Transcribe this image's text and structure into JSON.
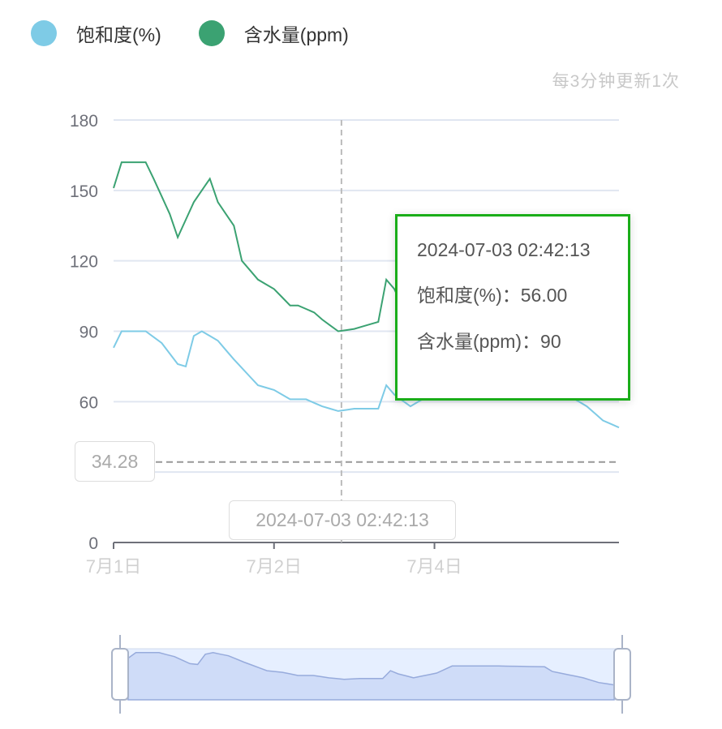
{
  "legend": [
    {
      "label": "饱和度(%)",
      "color": "#7ecbe6"
    },
    {
      "label": "含水量(ppm)",
      "color": "#3ba272"
    }
  ],
  "update_note": "每3分钟更新1次",
  "tooltip": {
    "time": "2024-07-03 02:42:13",
    "rows": [
      "饱和度(%)：56.00",
      "含水量(ppm)：90"
    ],
    "border_color": "#1aad19"
  },
  "axis_pointer_label": "2024-07-03 02:42:13",
  "mark_line": {
    "value": 34.28,
    "label": "34.28"
  },
  "chart_data": {
    "type": "line",
    "x_axis": "category",
    "x_count": 64,
    "x_ticks": [
      {
        "index": 0,
        "label": "7月1日"
      },
      {
        "index": 20,
        "label": "7月2日"
      },
      {
        "index": 40,
        "label": "7月4日"
      }
    ],
    "ylim": [
      0,
      180
    ],
    "y_ticks": [
      0,
      30,
      60,
      90,
      120,
      150,
      180
    ],
    "grid": true,
    "legend_position": "top-left",
    "crosshair_index": 28,
    "series": [
      {
        "name": "饱和度(%)",
        "color": "#7ecbe6",
        "points": [
          [
            0,
            83
          ],
          [
            1,
            90
          ],
          [
            4,
            90
          ],
          [
            6,
            85
          ],
          [
            8,
            76
          ],
          [
            9,
            75
          ],
          [
            10,
            88
          ],
          [
            11,
            90
          ],
          [
            13,
            86
          ],
          [
            15,
            78
          ],
          [
            18,
            67
          ],
          [
            20,
            65
          ],
          [
            22,
            61
          ],
          [
            24,
            61
          ],
          [
            26,
            58
          ],
          [
            28,
            56
          ],
          [
            30,
            57
          ],
          [
            33,
            57
          ],
          [
            34,
            67
          ],
          [
            35,
            63
          ],
          [
            37,
            58
          ],
          [
            40,
            64
          ],
          [
            42,
            73
          ],
          [
            48,
            73
          ],
          [
            54,
            72
          ],
          [
            55,
            66
          ],
          [
            59,
            58
          ],
          [
            61,
            52
          ],
          [
            63,
            49
          ]
        ]
      },
      {
        "name": "含水量(ppm)",
        "color": "#3ba272",
        "points": [
          [
            0,
            151
          ],
          [
            1,
            162
          ],
          [
            4,
            162
          ],
          [
            5,
            155
          ],
          [
            7,
            140
          ],
          [
            8,
            130
          ],
          [
            10,
            145
          ],
          [
            12,
            155
          ],
          [
            13,
            145
          ],
          [
            15,
            135
          ],
          [
            16,
            120
          ],
          [
            18,
            112
          ],
          [
            20,
            108
          ],
          [
            22,
            101
          ],
          [
            23,
            101
          ],
          [
            25,
            98
          ],
          [
            26,
            95
          ],
          [
            28,
            90
          ],
          [
            30,
            91
          ],
          [
            33,
            94
          ],
          [
            34,
            112
          ],
          [
            35,
            108
          ],
          [
            37,
            93
          ],
          [
            40,
            106
          ],
          [
            42,
            125
          ],
          [
            48,
            126
          ],
          [
            54,
            123
          ],
          [
            55,
            110
          ],
          [
            59,
            93
          ],
          [
            61,
            80
          ],
          [
            63,
            73
          ]
        ]
      }
    ],
    "data_zoom": {
      "start_percent": 0,
      "end_percent": 100,
      "preview_series": "饱和度(%)"
    }
  }
}
